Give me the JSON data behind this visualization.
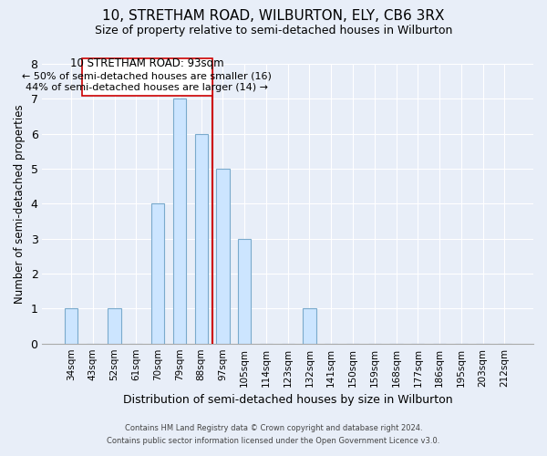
{
  "title": "10, STRETHAM ROAD, WILBURTON, ELY, CB6 3RX",
  "subtitle": "Size of property relative to semi-detached houses in Wilburton",
  "xlabel": "Distribution of semi-detached houses by size in Wilburton",
  "ylabel": "Number of semi-detached properties",
  "bin_labels": [
    "34sqm",
    "43sqm",
    "52sqm",
    "61sqm",
    "70sqm",
    "79sqm",
    "88sqm",
    "97sqm",
    "105sqm",
    "114sqm",
    "123sqm",
    "132sqm",
    "141sqm",
    "150sqm",
    "159sqm",
    "168sqm",
    "177sqm",
    "186sqm",
    "195sqm",
    "203sqm",
    "212sqm"
  ],
  "bar_heights": [
    1,
    0,
    1,
    0,
    4,
    7,
    6,
    5,
    3,
    0,
    0,
    1,
    0,
    0,
    0,
    0,
    0,
    0,
    0,
    0,
    0
  ],
  "bar_color": "#cce5ff",
  "bar_edge_color": "#7aaacc",
  "property_line_label": "10 STRETHAM ROAD: 93sqm",
  "annotation_smaller": "← 50% of semi-detached houses are smaller (16)",
  "annotation_larger": "44% of semi-detached houses are larger (14) →",
  "vline_color": "#cc0000",
  "annotation_box_edge": "#cc0000",
  "ylim": [
    0,
    8
  ],
  "yticks": [
    0,
    1,
    2,
    3,
    4,
    5,
    6,
    7,
    8
  ],
  "background_color": "#e8eef8",
  "grid_color": "#ffffff",
  "footer_line1": "Contains HM Land Registry data © Crown copyright and database right 2024.",
  "footer_line2": "Contains public sector information licensed under the Open Government Licence v3.0."
}
